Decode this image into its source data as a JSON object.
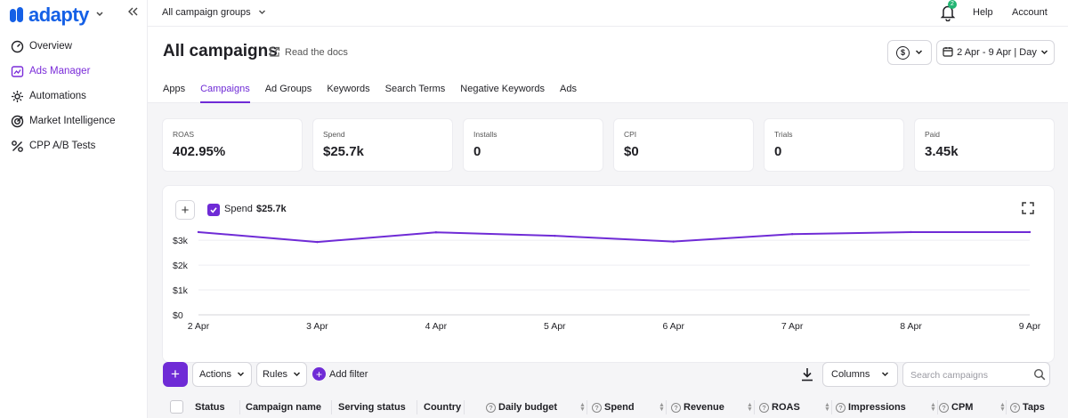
{
  "app": {
    "logo_text": "adapty"
  },
  "sidebar": {
    "items": [
      {
        "label": "Overview",
        "icon": "gauge-icon"
      },
      {
        "label": "Ads Manager",
        "icon": "ads-icon",
        "active": true
      },
      {
        "label": "Automations",
        "icon": "automation-icon"
      },
      {
        "label": "Market Intelligence",
        "icon": "target-icon"
      },
      {
        "label": "CPP A/B Tests",
        "icon": "percent-icon"
      }
    ]
  },
  "topbar": {
    "group_select": "All campaign groups",
    "notifications_count": "2",
    "help": "Help",
    "account": "Account"
  },
  "header": {
    "title": "All campaigns",
    "docs_link": "Read the docs",
    "currency_symbol": "$",
    "date_range": "2 Apr - 9 Apr | Day"
  },
  "tabs": [
    {
      "label": "Apps"
    },
    {
      "label": "Campaigns",
      "active": true
    },
    {
      "label": "Ad Groups"
    },
    {
      "label": "Keywords"
    },
    {
      "label": "Search Terms"
    },
    {
      "label": "Negative Keywords"
    },
    {
      "label": "Ads"
    }
  ],
  "metrics": [
    {
      "label": "ROAS",
      "value": "402.95%"
    },
    {
      "label": "Spend",
      "value": "$25.7k"
    },
    {
      "label": "Installs",
      "value": "0"
    },
    {
      "label": "CPI",
      "value": "$0"
    },
    {
      "label": "Trials",
      "value": "0"
    },
    {
      "label": "Paid",
      "value": "3.45k"
    }
  ],
  "chart": {
    "series_name": "Spend",
    "series_total": "$25.7k"
  },
  "chart_data": {
    "type": "line",
    "categories": [
      "2 Apr",
      "3 Apr",
      "4 Apr",
      "5 Apr",
      "6 Apr",
      "7 Apr",
      "8 Apr",
      "9 Apr"
    ],
    "yticks": [
      "$0",
      "$1k",
      "$2k",
      "$3k"
    ],
    "ylim": [
      0,
      3400
    ],
    "grid": true,
    "series": [
      {
        "name": "Spend",
        "color": "#6f2bd6",
        "values": [
          3330,
          2930,
          3320,
          3180,
          2950,
          3250,
          3330,
          3330
        ]
      }
    ]
  },
  "toolbar": {
    "add": "+",
    "actions": "Actions",
    "rules": "Rules",
    "add_filter": "Add filter",
    "columns": "Columns",
    "search_placeholder": "Search campaigns"
  },
  "table": {
    "columns": [
      {
        "label": "Status"
      },
      {
        "label": "Campaign name"
      },
      {
        "label": "Serving status"
      },
      {
        "label": "Country"
      },
      {
        "label": "Daily budget"
      },
      {
        "label": "Spend"
      },
      {
        "label": "Revenue"
      },
      {
        "label": "ROAS"
      },
      {
        "label": "Impressions"
      },
      {
        "label": "CPM"
      },
      {
        "label": "Taps"
      }
    ]
  },
  "colors": {
    "accent": "#6f2bd6",
    "brand": "#1560e6",
    "badge": "#22b573"
  }
}
